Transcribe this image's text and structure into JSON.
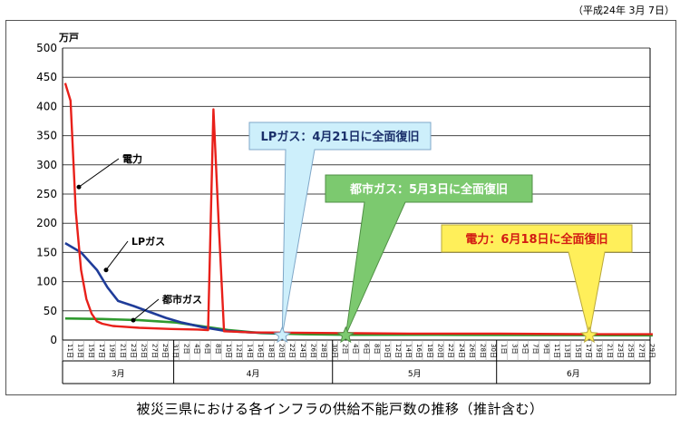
{
  "date_note": "（平成24年 3月 7日）",
  "caption": "被災三県における各インフラの供給不能戸数の推移（推計含む）",
  "colors": {
    "electricity": "#e8201a",
    "lp_gas": "#1f3c99",
    "city_gas": "#2f9a2f",
    "callout_lp": "#cdeffb",
    "callout_city": "#7cc96f",
    "callout_elec": "#ffef5a"
  },
  "chart_data": {
    "type": "line",
    "ylabel": "万戸",
    "ylim": [
      0,
      500
    ],
    "yticks": [
      0,
      50,
      100,
      150,
      200,
      250,
      300,
      350,
      400,
      450,
      500
    ],
    "grid": true,
    "x_start": "3月11日",
    "x_end": "6月30日",
    "day_tick_labels": [
      "11日",
      "13日",
      "15日",
      "17日",
      "19日",
      "21日",
      "23日",
      "25日",
      "27日",
      "29日",
      "31日",
      "2日",
      "4日",
      "6日",
      "8日",
      "10日",
      "12日",
      "14日",
      "16日",
      "18日",
      "20日",
      "22日",
      "24日",
      "26日",
      "28日",
      "30日",
      "2日",
      "4日",
      "6日",
      "8日",
      "10日",
      "12日",
      "14日",
      "16日",
      "18日",
      "20日",
      "22日",
      "24日",
      "26日",
      "28日",
      "30日",
      "1日",
      "3日",
      "5日",
      "7日",
      "9日",
      "11日",
      "13日",
      "15日",
      "17日",
      "19日",
      "21日",
      "23日",
      "25日",
      "27日",
      "29日"
    ],
    "months": [
      "3月",
      "4月",
      "5月",
      "6月"
    ],
    "series": [
      {
        "name": "電力",
        "points": [
          [
            "3/11",
            440
          ],
          [
            "3/12",
            410
          ],
          [
            "3/13",
            220
          ],
          [
            "3/14",
            120
          ],
          [
            "3/15",
            70
          ],
          [
            "3/16",
            45
          ],
          [
            "3/17",
            32
          ],
          [
            "3/18",
            28
          ],
          [
            "3/20",
            24
          ],
          [
            "3/25",
            21
          ],
          [
            "3/31",
            19
          ],
          [
            "4/5",
            18
          ],
          [
            "4/7",
            17
          ],
          [
            "4/8",
            395
          ],
          [
            "4/9",
            200
          ],
          [
            "4/10",
            15
          ],
          [
            "4/15",
            13
          ],
          [
            "5/1",
            12
          ],
          [
            "5/15",
            11
          ],
          [
            "6/1",
            11
          ],
          [
            "6/18",
            10
          ],
          [
            "6/30",
            10
          ]
        ]
      },
      {
        "name": "LPガス",
        "points": [
          [
            "3/11",
            166
          ],
          [
            "3/14",
            150
          ],
          [
            "3/17",
            120
          ],
          [
            "3/19",
            90
          ],
          [
            "3/21",
            67
          ],
          [
            "3/24",
            58
          ],
          [
            "3/27",
            48
          ],
          [
            "3/30",
            38
          ],
          [
            "4/2",
            30
          ],
          [
            "4/6",
            22
          ],
          [
            "4/10",
            16
          ],
          [
            "4/15",
            13
          ],
          [
            "4/21",
            12
          ]
        ]
      },
      {
        "name": "都市ガス",
        "points": [
          [
            "3/11",
            37
          ],
          [
            "3/18",
            36
          ],
          [
            "3/25",
            34
          ],
          [
            "4/1",
            30
          ],
          [
            "4/7",
            22
          ],
          [
            "4/11",
            17
          ],
          [
            "4/17",
            12
          ],
          [
            "4/25",
            10
          ],
          [
            "5/3",
            9
          ],
          [
            "5/20",
            9
          ],
          [
            "6/30",
            8
          ]
        ]
      }
    ],
    "annotations": [
      {
        "text": "LPガス：4月21日に全面復旧",
        "target": "4/21"
      },
      {
        "text": "都市ガス：5月3日に全面復旧",
        "target": "5/3"
      },
      {
        "text": "電力：6月18日に全面復旧",
        "target": "6/18"
      }
    ]
  }
}
